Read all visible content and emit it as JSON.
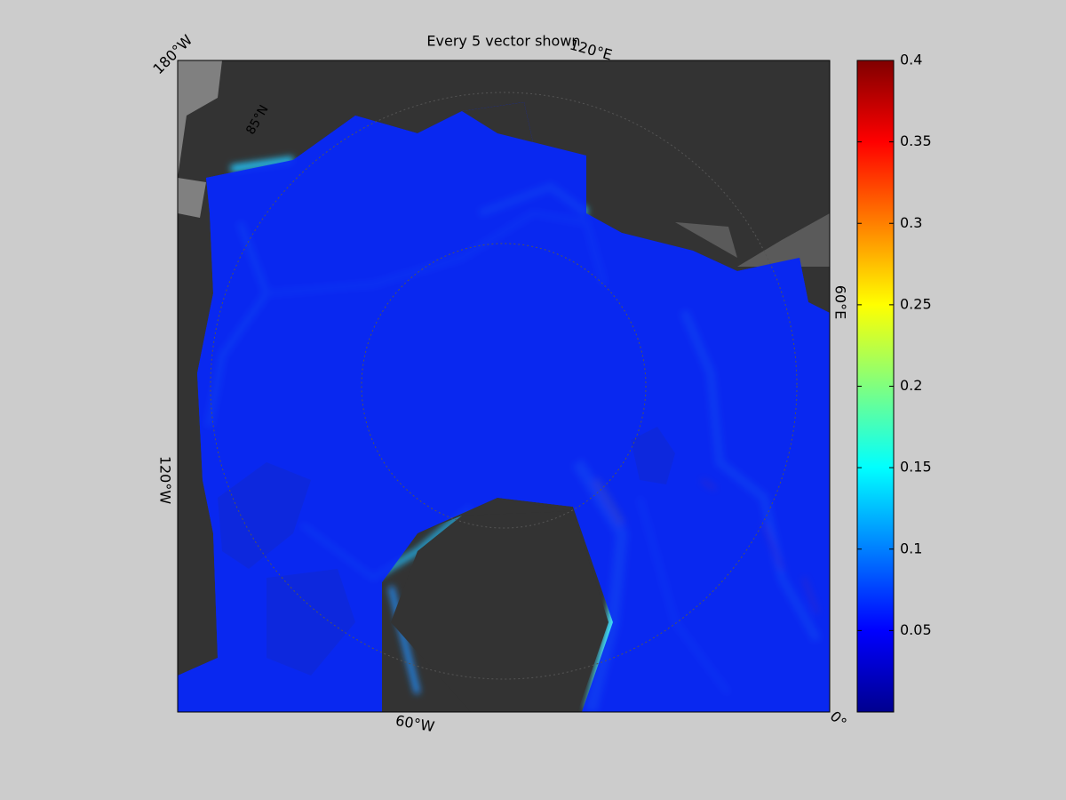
{
  "title": "Every 5 vector shown",
  "map_labels": {
    "lon_180w": "180°W",
    "lon_120e": "120°E",
    "lon_60e": "60°E",
    "lon_0": "0°",
    "lon_60w": "60°W",
    "lon_120w": "120°W",
    "lat_85n": "85°N"
  },
  "colorbar": {
    "lim": [
      0,
      0.4
    ],
    "ticks": [
      0.05,
      0.1,
      0.15,
      0.2,
      0.25,
      0.3,
      0.35,
      0.4
    ]
  }
}
